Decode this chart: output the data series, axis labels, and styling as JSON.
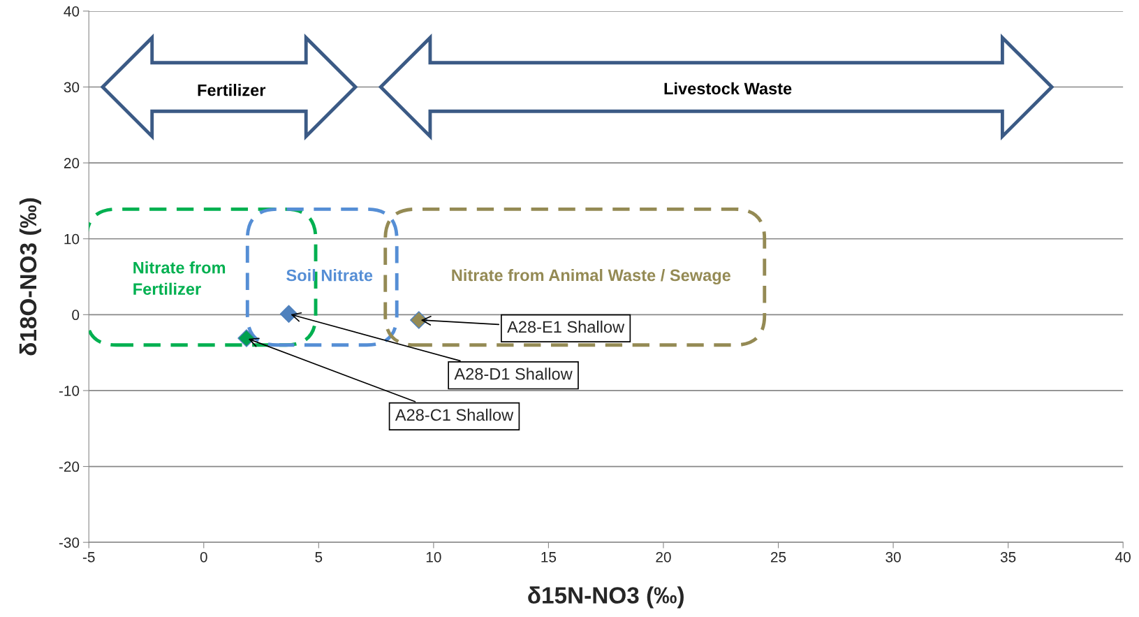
{
  "chart_data": {
    "type": "scatter",
    "xlabel": "δ15N-NO3 (‰)",
    "ylabel": "δ18O-NO3 (‰)",
    "x": [
      1.86,
      3.7,
      9.36
    ],
    "values": [
      -3.1,
      0.1,
      -0.7
    ],
    "colors": [
      "#00a050",
      "#4f81bd",
      "#948a54"
    ],
    "marker": "diamond",
    "xlim": [
      -5,
      40
    ],
    "xticks": [
      -5,
      0,
      5,
      10,
      15,
      20,
      25,
      30,
      35,
      40
    ],
    "ylim": [
      -30,
      40
    ],
    "yticks": [
      -30,
      -20,
      -10,
      0,
      10,
      20,
      30,
      40
    ],
    "grid": "y",
    "annotations": [
      {
        "text": "A28-C1 Shallow",
        "x": 1.86,
        "y": -3.1
      },
      {
        "text": "A28-D1 Shallow",
        "x": 3.7,
        "y": 0.1
      },
      {
        "text": "A28-E1 Shallow",
        "x": 9.36,
        "y": -0.7
      },
      "Nitrate from\nFertilizer",
      "Soil Nitrate",
      "Nitrate from Animal Waste / Sewage",
      "Fertilizer",
      "Livestock Waste"
    ]
  }
}
